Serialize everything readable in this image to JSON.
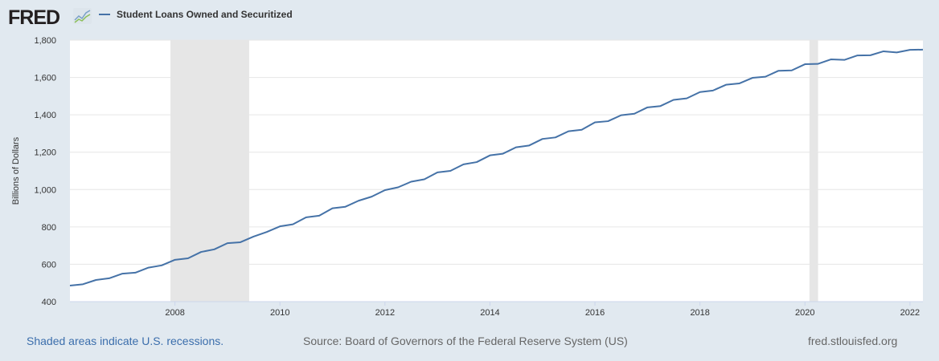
{
  "header": {
    "logo_text": "FRED",
    "legend_label": "Student Loans Owned and Securitized"
  },
  "footer": {
    "recession_note": "Shaded areas indicate U.S. recessions.",
    "source": "Source: Board of Governors of the Federal Reserve System (US)",
    "site": "fred.stlouisfed.org"
  },
  "colors": {
    "series": "#4572a7",
    "recession": "#e6e6e6",
    "background": "#e1e9f0",
    "grid": "#e6e6e6"
  },
  "chart_data": {
    "type": "line",
    "title": "",
    "xlabel": "",
    "ylabel": "Billions of Dollars",
    "ylim": [
      400,
      1800
    ],
    "xlim": [
      "2006-01-01",
      "2022-04-01"
    ],
    "grid": true,
    "legend_position": "top-left",
    "y_ticks": [
      "400",
      "600",
      "800",
      "1,000",
      "1,200",
      "1,400",
      "1,600",
      "1,800"
    ],
    "x_ticks": [
      "2008",
      "2010",
      "2012",
      "2014",
      "2016",
      "2018",
      "2020",
      "2022"
    ],
    "recessions": [
      [
        "2007-12-01",
        "2009-06-01"
      ],
      [
        "2020-02-01",
        "2020-04-01"
      ]
    ],
    "series": [
      {
        "name": "Student Loans Owned and Securitized",
        "x": [
          "2006-01-01",
          "2006-04-01",
          "2006-07-01",
          "2006-10-01",
          "2007-01-01",
          "2007-04-01",
          "2007-07-01",
          "2007-10-01",
          "2008-01-01",
          "2008-04-01",
          "2008-07-01",
          "2008-10-01",
          "2009-01-01",
          "2009-04-01",
          "2009-07-01",
          "2009-10-01",
          "2010-01-01",
          "2010-04-01",
          "2010-07-01",
          "2010-10-01",
          "2011-01-01",
          "2011-04-01",
          "2011-07-01",
          "2011-10-01",
          "2012-01-01",
          "2012-04-01",
          "2012-07-01",
          "2012-10-01",
          "2013-01-01",
          "2013-04-01",
          "2013-07-01",
          "2013-10-01",
          "2014-01-01",
          "2014-04-01",
          "2014-07-01",
          "2014-10-01",
          "2015-01-01",
          "2015-04-01",
          "2015-07-01",
          "2015-10-01",
          "2016-01-01",
          "2016-04-01",
          "2016-07-01",
          "2016-10-01",
          "2017-01-01",
          "2017-04-01",
          "2017-07-01",
          "2017-10-01",
          "2018-01-01",
          "2018-04-01",
          "2018-07-01",
          "2018-10-01",
          "2019-01-01",
          "2019-04-01",
          "2019-07-01",
          "2019-10-01",
          "2020-01-01",
          "2020-04-01",
          "2020-07-01",
          "2020-10-01",
          "2021-01-01",
          "2021-04-01",
          "2021-07-01",
          "2021-10-01",
          "2022-01-01",
          "2022-04-01"
        ],
        "values": [
          486,
          493,
          516,
          525,
          550,
          555,
          582,
          594,
          624,
          632,
          666,
          680,
          713,
          718,
          748,
          773,
          803,
          814,
          851,
          860,
          900,
          908,
          940,
          962,
          997,
          1012,
          1042,
          1055,
          1092,
          1100,
          1135,
          1147,
          1183,
          1192,
          1226,
          1236,
          1271,
          1279,
          1312,
          1320,
          1360,
          1366,
          1398,
          1406,
          1440,
          1447,
          1480,
          1488,
          1522,
          1530,
          1561,
          1568,
          1598,
          1604,
          1636,
          1638,
          1671,
          1673,
          1697,
          1694,
          1718,
          1719,
          1740,
          1734,
          1748,
          1749
        ]
      }
    ]
  }
}
